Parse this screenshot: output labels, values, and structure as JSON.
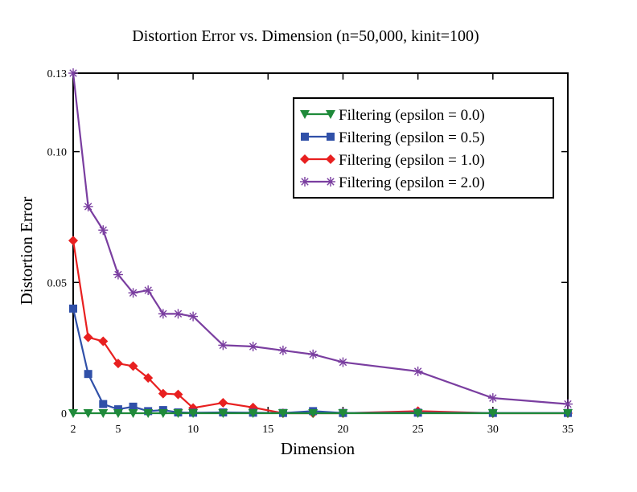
{
  "chart_data": {
    "type": "line",
    "title": "Distortion Error vs. Dimension (n=50,000, kinit=100)",
    "xlabel": "Dimension",
    "ylabel": "Distortion Error",
    "xlim": [
      2,
      35
    ],
    "ylim": [
      0,
      0.13
    ],
    "xticks": [
      2,
      5,
      10,
      15,
      20,
      25,
      30,
      35
    ],
    "yticks": [
      0,
      0.05,
      0.1,
      0.13
    ],
    "ytick_labels": [
      "0",
      "0.05",
      "0.10",
      "0.13"
    ],
    "legend_position": "top-right",
    "grid": false,
    "series": [
      {
        "name": "Filtering (epsilon = 0.0)",
        "color": "#1f8a3a",
        "marker": "triangle-down",
        "x": [
          2,
          3,
          4,
          5,
          6,
          7,
          8,
          9,
          10,
          12,
          14,
          16,
          18,
          20,
          25,
          30,
          35
        ],
        "y": [
          0,
          0,
          0,
          0,
          0,
          0,
          0,
          0,
          0,
          0,
          0,
          0,
          0,
          0,
          0,
          0,
          0
        ]
      },
      {
        "name": "Filtering (epsilon = 0.5)",
        "color": "#3050a8",
        "marker": "square",
        "x": [
          2,
          3,
          4,
          5,
          6,
          7,
          8,
          9,
          10,
          12,
          14,
          16,
          18,
          20,
          25,
          30,
          35
        ],
        "y": [
          0.04,
          0.015,
          0.0035,
          0.0015,
          0.0025,
          0.0008,
          0.0012,
          0.0003,
          0.0002,
          0.0003,
          0.0002,
          0.0001,
          0.0008,
          0.0001,
          0.0002,
          0.0001,
          0.0001
        ]
      },
      {
        "name": "Filtering (epsilon = 1.0)",
        "color": "#e82020",
        "marker": "diamond",
        "x": [
          2,
          3,
          4,
          5,
          6,
          7,
          8,
          9,
          10,
          12,
          14,
          16,
          18,
          20,
          25,
          30,
          35
        ],
        "y": [
          0.066,
          0.029,
          0.0275,
          0.019,
          0.018,
          0.0135,
          0.0075,
          0.0072,
          0.002,
          0.004,
          0.0022,
          0.0,
          0.0,
          0.0,
          0.0008,
          0.0,
          0.0
        ]
      },
      {
        "name": "Filtering (epsilon = 2.0)",
        "color": "#7a3ea0",
        "marker": "asterisk",
        "x": [
          2,
          3,
          4,
          5,
          6,
          7,
          8,
          9,
          10,
          12,
          14,
          16,
          18,
          20,
          25,
          30,
          35
        ],
        "y": [
          0.13,
          0.079,
          0.07,
          0.053,
          0.046,
          0.047,
          0.038,
          0.038,
          0.037,
          0.026,
          0.0255,
          0.024,
          0.0225,
          0.0195,
          0.016,
          0.0058,
          0.0035
        ]
      }
    ]
  }
}
